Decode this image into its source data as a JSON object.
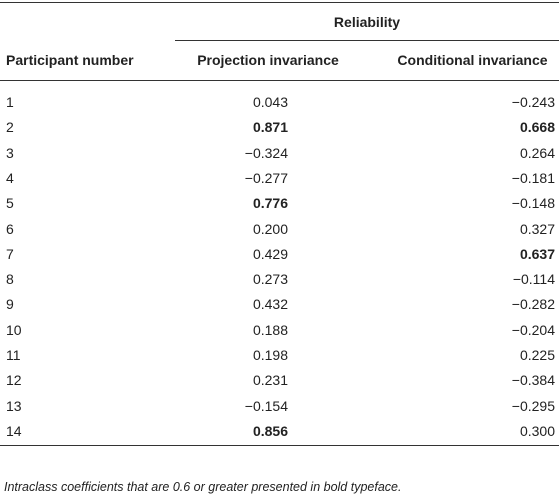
{
  "table": {
    "group_header": "Reliability",
    "columns": [
      "Participant number",
      "Projection invariance",
      "Conditional invariance"
    ],
    "rows": [
      [
        {
          "text": "1"
        },
        {
          "text": "0.043",
          "bold": false
        },
        {
          "text": "−0.243",
          "bold": false
        }
      ],
      [
        {
          "text": "2"
        },
        {
          "text": "0.871",
          "bold": true
        },
        {
          "text": "0.668",
          "bold": true
        }
      ],
      [
        {
          "text": "3"
        },
        {
          "text": "−0.324",
          "bold": false
        },
        {
          "text": "0.264",
          "bold": false
        }
      ],
      [
        {
          "text": "4"
        },
        {
          "text": "−0.277",
          "bold": false
        },
        {
          "text": "−0.181",
          "bold": false
        }
      ],
      [
        {
          "text": "5"
        },
        {
          "text": "0.776",
          "bold": true
        },
        {
          "text": "−0.148",
          "bold": false
        }
      ],
      [
        {
          "text": "6"
        },
        {
          "text": "0.200",
          "bold": false
        },
        {
          "text": "0.327",
          "bold": false
        }
      ],
      [
        {
          "text": "7"
        },
        {
          "text": "0.429",
          "bold": false
        },
        {
          "text": "0.637",
          "bold": true
        }
      ],
      [
        {
          "text": "8"
        },
        {
          "text": "0.273",
          "bold": false
        },
        {
          "text": "−0.114",
          "bold": false
        }
      ],
      [
        {
          "text": "9"
        },
        {
          "text": "0.432",
          "bold": false
        },
        {
          "text": "−0.282",
          "bold": false
        }
      ],
      [
        {
          "text": "10"
        },
        {
          "text": "0.188",
          "bold": false
        },
        {
          "text": "−0.204",
          "bold": false
        }
      ],
      [
        {
          "text": "11"
        },
        {
          "text": "0.198",
          "bold": false
        },
        {
          "text": "0.225",
          "bold": false
        }
      ],
      [
        {
          "text": "12"
        },
        {
          "text": "0.231",
          "bold": false
        },
        {
          "text": "−0.384",
          "bold": false
        }
      ],
      [
        {
          "text": "13"
        },
        {
          "text": "−0.154",
          "bold": false
        },
        {
          "text": "−0.295",
          "bold": false
        }
      ],
      [
        {
          "text": "14"
        },
        {
          "text": "0.856",
          "bold": true
        },
        {
          "text": "0.300",
          "bold": false
        }
      ]
    ],
    "footnote": "Intraclass coefficients that are 0.6 or greater presented in bold typeface."
  }
}
